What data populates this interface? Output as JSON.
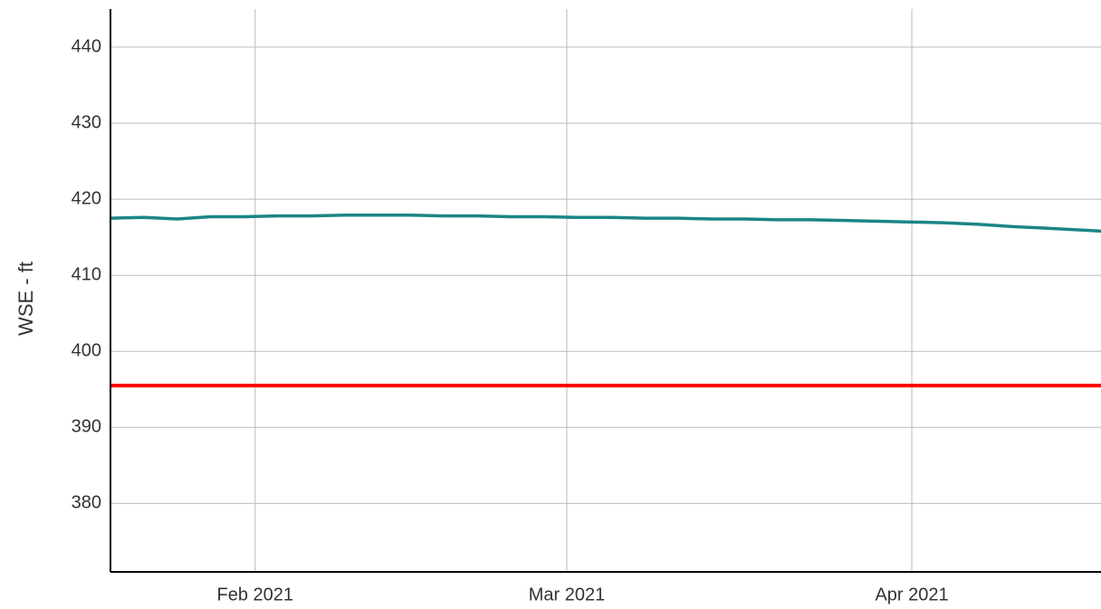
{
  "chart_data": {
    "type": "line",
    "y_label": "WSE - ft",
    "x": [
      "2021-01-19",
      "2021-01-22",
      "2021-01-25",
      "2021-01-28",
      "2021-01-31",
      "2021-02-03",
      "2021-02-06",
      "2021-02-09",
      "2021-02-12",
      "2021-02-15",
      "2021-02-18",
      "2021-02-21",
      "2021-02-24",
      "2021-02-27",
      "2021-03-02",
      "2021-03-05",
      "2021-03-08",
      "2021-03-11",
      "2021-03-14",
      "2021-03-17",
      "2021-03-20",
      "2021-03-23",
      "2021-03-26",
      "2021-03-29",
      "2021-04-01",
      "2021-04-04",
      "2021-04-07",
      "2021-04-10",
      "2021-04-13",
      "2021-04-18"
    ],
    "series": [
      {
        "color": "#1a8585",
        "values": [
          417.5,
          417.6,
          417.4,
          417.7,
          417.7,
          417.8,
          417.8,
          417.9,
          417.9,
          417.9,
          417.8,
          417.8,
          417.7,
          417.7,
          417.6,
          417.6,
          417.5,
          417.5,
          417.4,
          417.4,
          417.3,
          417.3,
          417.2,
          417.1,
          417.0,
          416.9,
          416.7,
          416.4,
          416.2,
          415.8
        ]
      }
    ],
    "reference_lines": [
      {
        "value": 395.5,
        "color": "#ff0000"
      }
    ],
    "xlim": [
      "2021-01-19",
      "2021-04-18"
    ],
    "xticks": [
      {
        "value": "2021-02-01",
        "label": "Feb 2021"
      },
      {
        "value": "2021-03-01",
        "label": "Mar 2021"
      },
      {
        "value": "2021-04-01",
        "label": "Apr 2021"
      }
    ],
    "ylim": [
      371,
      445
    ],
    "yticks": [
      380,
      390,
      400,
      410,
      420,
      430,
      440
    ],
    "grid": true
  }
}
